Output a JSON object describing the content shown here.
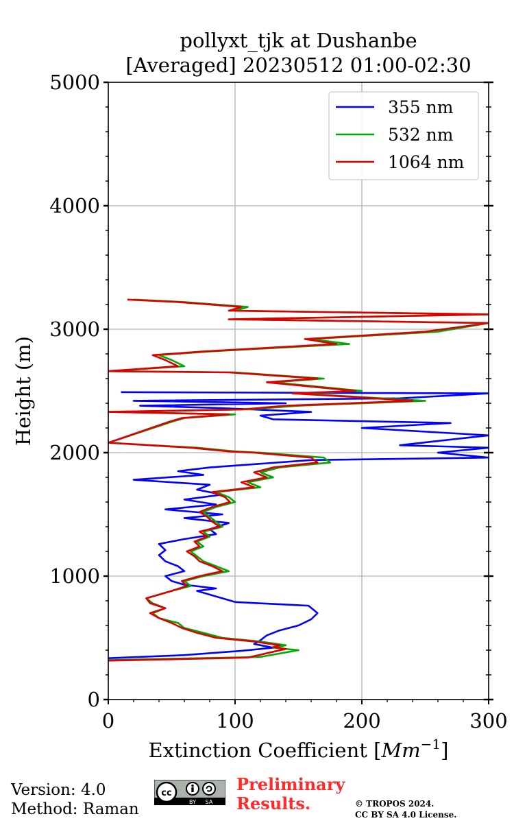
{
  "chart_data": {
    "type": "line",
    "title": [
      "pollyxt_tjk at Dushanbe",
      "[Averaged] 20230512 01:00-02:30"
    ],
    "xlabel": "Extinction Coefficient [$Mm^{-1}$]",
    "xlabel_parts": {
      "main": "Extinction Coefficient [",
      "var": "Mm",
      "exp": "−1",
      "end": "]"
    },
    "ylabel": "Height (m)",
    "xlim": [
      0,
      300
    ],
    "ylim": [
      0,
      5000
    ],
    "xticks": [
      "0",
      "100",
      "200",
      "300"
    ],
    "yticks": [
      "0",
      "1000",
      "2000",
      "3000",
      "4000",
      "5000"
    ],
    "grid": true,
    "legend_position": "top-right",
    "series": [
      {
        "name": "355 nm",
        "color": "#0000ff",
        "points": [
          [
            0,
            335
          ],
          [
            60,
            360
          ],
          [
            105,
            395
          ],
          [
            130,
            420
          ],
          [
            115,
            450
          ],
          [
            120,
            480
          ],
          [
            125,
            520
          ],
          [
            135,
            560
          ],
          [
            150,
            600
          ],
          [
            160,
            650
          ],
          [
            165,
            700
          ],
          [
            158,
            760
          ],
          [
            100,
            790
          ],
          [
            90,
            820
          ],
          [
            80,
            850
          ],
          [
            70,
            880
          ],
          [
            85,
            900
          ],
          [
            60,
            930
          ],
          [
            50,
            960
          ],
          [
            45,
            1000
          ],
          [
            60,
            1040
          ],
          [
            55,
            1080
          ],
          [
            45,
            1120
          ],
          [
            40,
            1170
          ],
          [
            45,
            1210
          ],
          [
            40,
            1260
          ],
          [
            60,
            1300
          ],
          [
            85,
            1340
          ],
          [
            80,
            1380
          ],
          [
            95,
            1430
          ],
          [
            60,
            1470
          ],
          [
            90,
            1500
          ],
          [
            45,
            1540
          ],
          [
            85,
            1580
          ],
          [
            60,
            1620
          ],
          [
            90,
            1660
          ],
          [
            70,
            1700
          ],
          [
            80,
            1740
          ],
          [
            20,
            1780
          ],
          [
            75,
            1820
          ],
          [
            55,
            1850
          ],
          [
            80,
            1880
          ],
          [
            120,
            1910
          ],
          [
            160,
            1940
          ],
          [
            300,
            1960
          ],
          [
            260,
            2000
          ],
          [
            300,
            2040
          ],
          [
            230,
            2060
          ],
          [
            300,
            2140
          ],
          [
            200,
            2200
          ],
          [
            270,
            2240
          ],
          [
            130,
            2270
          ],
          [
            120,
            2300
          ],
          [
            160,
            2330
          ],
          [
            90,
            2360
          ],
          [
            25,
            2380
          ],
          [
            140,
            2400
          ],
          [
            20,
            2420
          ],
          [
            230,
            2440
          ],
          [
            300,
            2480
          ],
          [
            10,
            2490
          ]
        ]
      },
      {
        "name": "532 nm",
        "color": "#00aa00",
        "points": [
          [
            0,
            320
          ],
          [
            120,
            345
          ],
          [
            150,
            400
          ],
          [
            130,
            420
          ],
          [
            140,
            440
          ],
          [
            120,
            470
          ],
          [
            90,
            500
          ],
          [
            75,
            540
          ],
          [
            60,
            580
          ],
          [
            55,
            620
          ],
          [
            40,
            660
          ],
          [
            35,
            700
          ],
          [
            45,
            740
          ],
          [
            35,
            780
          ],
          [
            30,
            820
          ],
          [
            40,
            850
          ],
          [
            50,
            880
          ],
          [
            65,
            920
          ],
          [
            60,
            960
          ],
          [
            75,
            1000
          ],
          [
            95,
            1040
          ],
          [
            85,
            1080
          ],
          [
            75,
            1120
          ],
          [
            70,
            1160
          ],
          [
            65,
            1200
          ],
          [
            75,
            1240
          ],
          [
            70,
            1280
          ],
          [
            80,
            1320
          ],
          [
            75,
            1360
          ],
          [
            90,
            1400
          ],
          [
            85,
            1440
          ],
          [
            80,
            1480
          ],
          [
            75,
            1520
          ],
          [
            85,
            1560
          ],
          [
            100,
            1600
          ],
          [
            95,
            1640
          ],
          [
            85,
            1680
          ],
          [
            120,
            1720
          ],
          [
            110,
            1760
          ],
          [
            130,
            1800
          ],
          [
            120,
            1840
          ],
          [
            135,
            1880
          ],
          [
            175,
            1920
          ],
          [
            170,
            1960
          ],
          [
            120,
            2000
          ],
          [
            100,
            2010
          ],
          [
            70,
            2040
          ],
          [
            0,
            2080
          ],
          [
            50,
            2250
          ],
          [
            60,
            2280
          ],
          [
            100,
            2310
          ],
          [
            0,
            2330
          ],
          [
            110,
            2350
          ],
          [
            150,
            2380
          ],
          [
            250,
            2420
          ],
          [
            200,
            2450
          ],
          [
            150,
            2480
          ],
          [
            200,
            2500
          ],
          [
            160,
            2540
          ],
          [
            130,
            2570
          ],
          [
            170,
            2600
          ],
          [
            100,
            2650
          ],
          [
            0,
            2660
          ],
          [
            60,
            2700
          ],
          [
            50,
            2750
          ],
          [
            40,
            2790
          ],
          [
            80,
            2820
          ],
          [
            190,
            2880
          ],
          [
            160,
            2920
          ],
          [
            260,
            2980
          ],
          [
            300,
            3050
          ],
          [
            100,
            3080
          ],
          [
            300,
            3120
          ],
          [
            100,
            3150
          ],
          [
            110,
            3180
          ],
          [
            60,
            3220
          ],
          [
            20,
            3240
          ]
        ]
      },
      {
        "name": "1064 nm",
        "color": "#dd0000",
        "points": [
          [
            0,
            315
          ],
          [
            110,
            340
          ],
          [
            140,
            410
          ],
          [
            130,
            425
          ],
          [
            135,
            440
          ],
          [
            115,
            470
          ],
          [
            85,
            500
          ],
          [
            70,
            540
          ],
          [
            58,
            580
          ],
          [
            50,
            620
          ],
          [
            40,
            660
          ],
          [
            33,
            700
          ],
          [
            45,
            740
          ],
          [
            33,
            780
          ],
          [
            30,
            820
          ],
          [
            40,
            850
          ],
          [
            50,
            880
          ],
          [
            62,
            920
          ],
          [
            58,
            960
          ],
          [
            72,
            1000
          ],
          [
            90,
            1040
          ],
          [
            82,
            1080
          ],
          [
            72,
            1120
          ],
          [
            68,
            1160
          ],
          [
            62,
            1200
          ],
          [
            72,
            1240
          ],
          [
            68,
            1280
          ],
          [
            78,
            1320
          ],
          [
            72,
            1360
          ],
          [
            88,
            1400
          ],
          [
            82,
            1440
          ],
          [
            78,
            1480
          ],
          [
            72,
            1520
          ],
          [
            82,
            1560
          ],
          [
            96,
            1600
          ],
          [
            92,
            1640
          ],
          [
            82,
            1680
          ],
          [
            115,
            1720
          ],
          [
            105,
            1760
          ],
          [
            125,
            1800
          ],
          [
            115,
            1840
          ],
          [
            130,
            1880
          ],
          [
            165,
            1920
          ],
          [
            160,
            1960
          ],
          [
            115,
            2000
          ],
          [
            95,
            2010
          ],
          [
            65,
            2040
          ],
          [
            0,
            2080
          ],
          [
            48,
            2250
          ],
          [
            58,
            2280
          ],
          [
            95,
            2310
          ],
          [
            0,
            2330
          ],
          [
            105,
            2350
          ],
          [
            140,
            2380
          ],
          [
            240,
            2420
          ],
          [
            195,
            2450
          ],
          [
            145,
            2480
          ],
          [
            195,
            2500
          ],
          [
            155,
            2540
          ],
          [
            125,
            2570
          ],
          [
            165,
            2600
          ],
          [
            95,
            2650
          ],
          [
            0,
            2660
          ],
          [
            55,
            2700
          ],
          [
            45,
            2750
          ],
          [
            35,
            2790
          ],
          [
            75,
            2820
          ],
          [
            180,
            2880
          ],
          [
            155,
            2920
          ],
          [
            250,
            2980
          ],
          [
            300,
            3050
          ],
          [
            95,
            3080
          ],
          [
            300,
            3120
          ],
          [
            95,
            3150
          ],
          [
            105,
            3180
          ],
          [
            55,
            3220
          ],
          [
            15,
            3240
          ]
        ]
      }
    ]
  },
  "footer": {
    "version": "Version: 4.0",
    "method": "Method: Raman",
    "prelim_1": "Preliminary",
    "prelim_2": "Results.",
    "copyright_1": "© TROPOS 2024.",
    "copyright_2": "CC BY SA 4.0 License.",
    "badge_by": "BY",
    "badge_sa": "SA"
  },
  "colors": {
    "grid": "#b0b0b0",
    "axis": "#000000",
    "prelim": "#ff2a2a"
  }
}
